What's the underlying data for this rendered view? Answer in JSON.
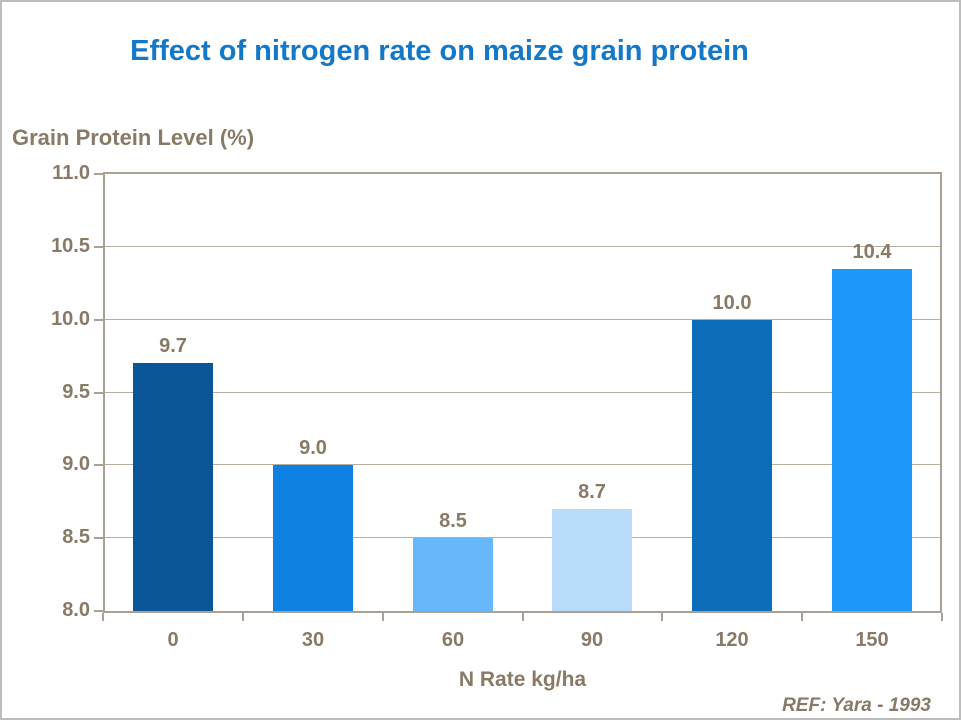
{
  "footer": {
    "reference": "REF: Yara - 1993"
  },
  "chart_data": {
    "type": "bar",
    "title": "Effect of nitrogen rate on maize grain protein",
    "ylabel": "Grain Protein Level (%)",
    "xlabel": "N Rate kg/ha",
    "categories": [
      "0",
      "30",
      "60",
      "90",
      "120",
      "150"
    ],
    "values": [
      9.7,
      9.0,
      8.5,
      8.7,
      10.0,
      10.35
    ],
    "value_labels": [
      "9.7",
      "9.0",
      "8.5",
      "8.7",
      "10.0",
      "10.4"
    ],
    "ylim": [
      8.0,
      11.0
    ],
    "ytick_step": 0.5,
    "yticks": [
      "11.0",
      "10.5",
      "10.0",
      "9.5",
      "9.0",
      "8.5",
      "8.0"
    ],
    "grid": true,
    "legend": "none",
    "bar_colors": [
      "#0a5596",
      "#0f81e2",
      "#66b8fa",
      "#b8dcfa",
      "#0d6db8",
      "#1e97fa"
    ],
    "colors": {
      "title": "#1478c8",
      "axis_text": "#887a66",
      "grid": "#b6ada1",
      "frame": "#a9a096",
      "background": "#ffffff"
    }
  }
}
